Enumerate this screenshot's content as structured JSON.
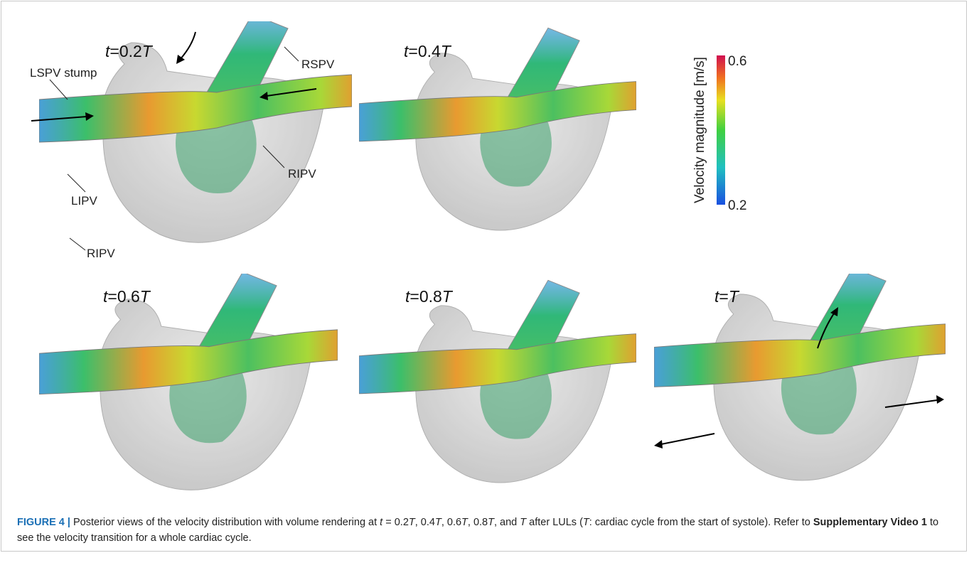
{
  "panels": [
    {
      "label": [
        "t",
        "=0.2",
        "T"
      ]
    },
    {
      "label": [
        "t",
        "=0.4",
        "T"
      ]
    },
    {
      "label": [
        "t",
        "=0.6",
        "T"
      ]
    },
    {
      "label": [
        "t",
        "=0.8",
        "T"
      ]
    },
    {
      "label": [
        "t",
        "=",
        "T"
      ]
    }
  ],
  "annotations": [
    "LSPV stump",
    "RSPV",
    "RIPV",
    "LIPV",
    "RIPV"
  ],
  "colorbar": {
    "title": "Velocity magnitude  [m/s]",
    "max": 0.6,
    "min": 0.2
  },
  "caption": [
    {
      "text": "FIGURE 4 |",
      "style": "figno"
    },
    {
      "text": " Posterior views of the velocity distribution with volume rendering at ",
      "style": "normal"
    },
    {
      "text": "t",
      "style": "italic"
    },
    {
      "text": " = 0.2",
      "style": "normal"
    },
    {
      "text": "T",
      "style": "italic"
    },
    {
      "text": ", 0.4",
      "style": "normal"
    },
    {
      "text": "T",
      "style": "italic"
    },
    {
      "text": ", 0.6",
      "style": "normal"
    },
    {
      "text": "T",
      "style": "italic"
    },
    {
      "text": ", 0.8",
      "style": "normal"
    },
    {
      "text": "T",
      "style": "italic"
    },
    {
      "text": ", and ",
      "style": "normal"
    },
    {
      "text": "T",
      "style": "italic"
    },
    {
      "text": " after LULs (",
      "style": "normal"
    },
    {
      "text": "T",
      "style": "italic"
    },
    {
      "text": ": cardiac cycle from the start of systole). Refer to ",
      "style": "normal"
    },
    {
      "text": "Supplementary Video 1",
      "style": "bold"
    },
    {
      "text": " to see the velocity transition for a whole cardiac cycle.",
      "style": "normal"
    }
  ]
}
